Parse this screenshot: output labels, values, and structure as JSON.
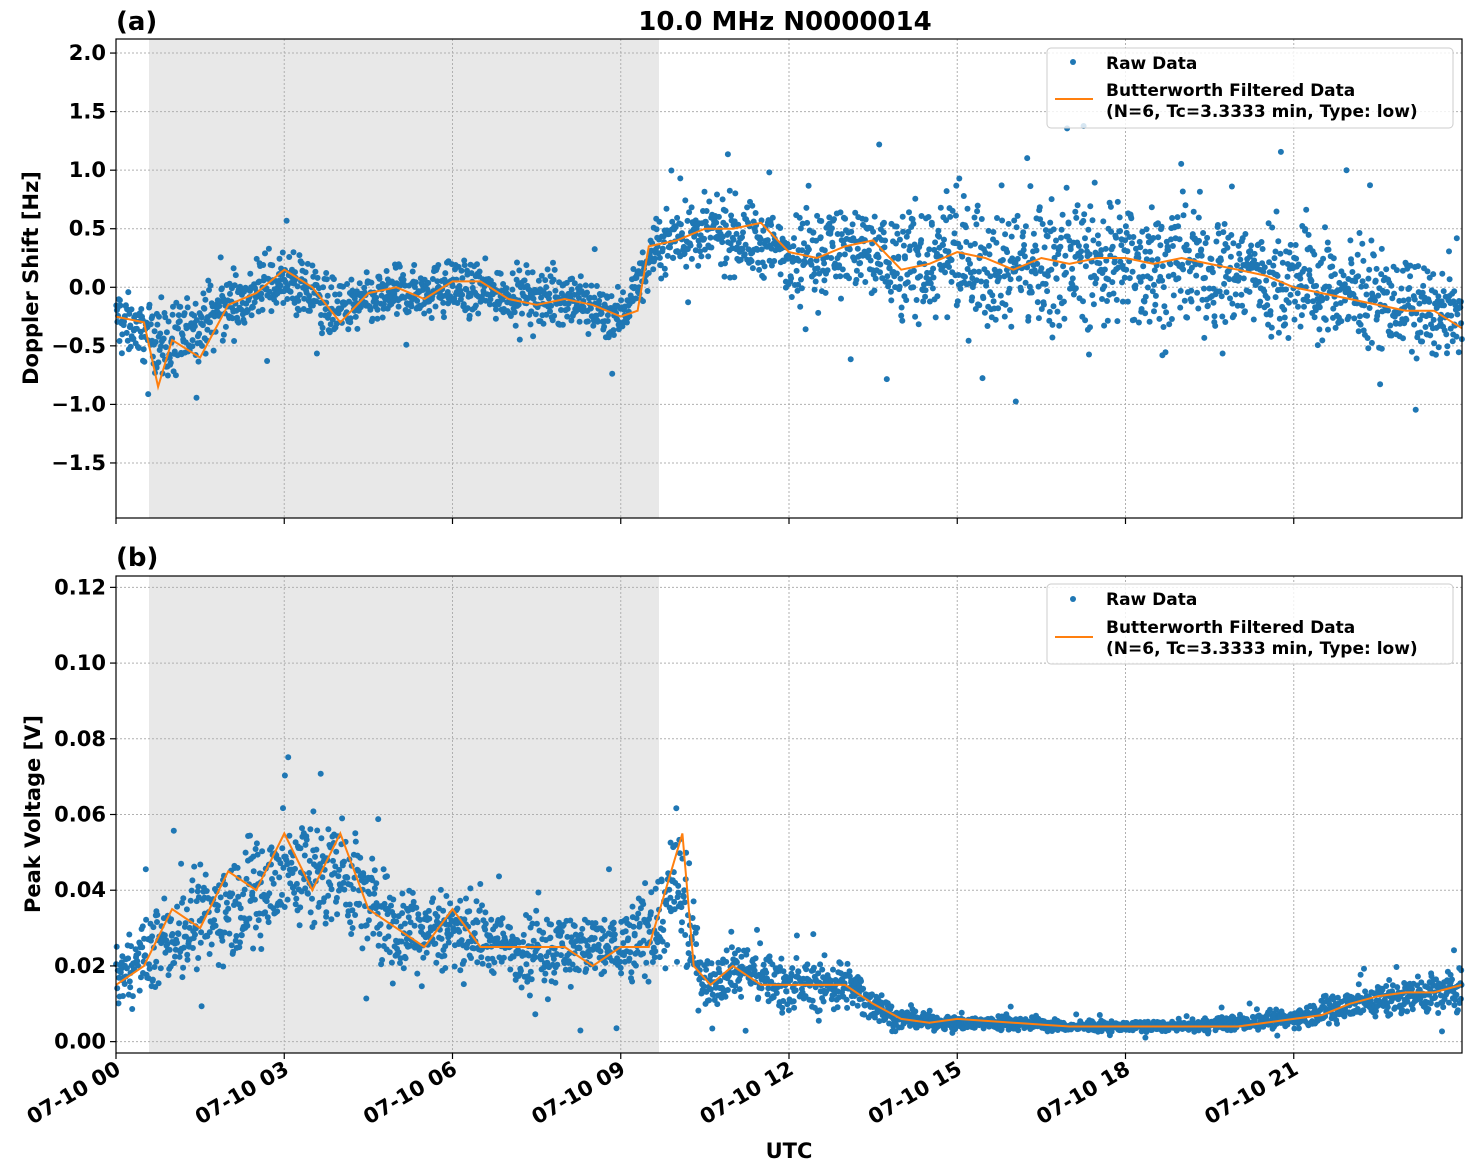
{
  "figure": {
    "title": "10.0 MHz N0000014",
    "xlabel": "UTC",
    "x_ticks": [
      "07-10 00",
      "07-10 03",
      "07-10 06",
      "07-10 09",
      "07-10 12",
      "07-10 15",
      "07-10 18",
      "07-10 21"
    ],
    "legend": {
      "raw_label": "Raw Data",
      "filtered_label_line1": "Butterworth Filtered Data",
      "filtered_label_line2": "(N=6, Tc=3.3333 min, Type: low)"
    },
    "colors": {
      "raw": "#1f77b4",
      "filtered": "#ff7f0e",
      "night_shade": "#e8e8e8"
    }
  },
  "chart_data": [
    {
      "type": "scatter",
      "panel_label": "(a)",
      "ylabel": "Doppler Shift [Hz]",
      "xlim_hours": [
        0,
        24
      ],
      "ylim": [
        -1.97,
        2.12
      ],
      "y_ticks": [
        2.0,
        1.5,
        1.0,
        0.5,
        0.0,
        -0.5,
        -1.0,
        -1.5
      ],
      "y_tick_labels": [
        "2.0",
        "1.5",
        "1.0",
        "0.5",
        "0.0",
        "−0.5",
        "−1.0",
        "−1.5"
      ],
      "shaded_interval_hours": [
        0.57,
        9.63
      ],
      "grid": true,
      "legend_position": "top-right",
      "series": [
        {
          "name": "Butterworth Filtered Data\n(N=6, Tc=3.3333 min, Type: low)",
          "style": "line",
          "x_hours": [
            0,
            0.5,
            0.75,
            1.0,
            1.5,
            2.0,
            2.5,
            3.0,
            3.5,
            4.0,
            4.5,
            5.0,
            5.5,
            6.0,
            6.5,
            7.0,
            7.5,
            8.0,
            8.5,
            9.0,
            9.3,
            9.5,
            10.0,
            10.5,
            11.0,
            11.5,
            12.0,
            12.5,
            13.0,
            13.5,
            14.0,
            14.5,
            15.0,
            15.5,
            16.0,
            16.5,
            17.0,
            17.5,
            18.0,
            18.5,
            19.0,
            19.5,
            20.0,
            20.5,
            21.0,
            21.5,
            22.0,
            22.5,
            23.0,
            23.5,
            24.0
          ],
          "y": [
            -0.25,
            -0.3,
            -0.85,
            -0.45,
            -0.6,
            -0.15,
            -0.05,
            0.15,
            0.0,
            -0.3,
            -0.05,
            0.0,
            -0.1,
            0.05,
            0.05,
            -0.1,
            -0.15,
            -0.1,
            -0.15,
            -0.25,
            -0.2,
            0.35,
            0.4,
            0.5,
            0.5,
            0.55,
            0.3,
            0.25,
            0.35,
            0.4,
            0.15,
            0.2,
            0.3,
            0.25,
            0.15,
            0.25,
            0.2,
            0.25,
            0.25,
            0.2,
            0.25,
            0.2,
            0.15,
            0.1,
            0.0,
            -0.05,
            -0.1,
            -0.15,
            -0.2,
            -0.2,
            -0.35
          ]
        },
        {
          "name": "Raw Data",
          "style": "points",
          "x_hours": [
            0,
            1,
            2,
            3,
            4,
            5,
            6,
            7,
            8,
            9,
            9.6,
            10,
            11,
            12,
            13,
            14,
            15,
            16,
            17,
            18,
            19,
            20,
            21,
            22,
            23,
            24
          ],
          "y_center": [
            -0.25,
            -0.5,
            -0.15,
            0.05,
            -0.2,
            -0.05,
            0.0,
            -0.05,
            -0.1,
            -0.25,
            0.3,
            0.45,
            0.45,
            0.3,
            0.35,
            0.2,
            0.25,
            0.2,
            0.25,
            0.2,
            0.2,
            0.15,
            0.05,
            -0.05,
            -0.15,
            -0.3
          ],
          "y_spread": [
            0.35,
            0.45,
            0.4,
            0.4,
            0.4,
            0.35,
            0.35,
            0.35,
            0.35,
            0.35,
            0.35,
            0.45,
            0.5,
            0.5,
            0.6,
            0.75,
            0.8,
            0.85,
            0.85,
            0.85,
            0.85,
            0.8,
            0.75,
            0.65,
            0.6,
            0.55
          ]
        }
      ]
    },
    {
      "type": "scatter",
      "panel_label": "(b)",
      "ylabel": "Peak Voltage [V]",
      "xlim_hours": [
        0,
        24
      ],
      "ylim": [
        -0.003,
        0.123
      ],
      "y_ticks": [
        0.12,
        0.1,
        0.08,
        0.06,
        0.04,
        0.02,
        0.0
      ],
      "y_tick_labels": [
        "0.12",
        "0.10",
        "0.08",
        "0.06",
        "0.04",
        "0.02",
        "0.00"
      ],
      "shaded_interval_hours": [
        0.57,
        9.63
      ],
      "grid": true,
      "legend_position": "top-right",
      "series": [
        {
          "name": "Butterworth Filtered Data\n(N=6, Tc=3.3333 min, Type: low)",
          "style": "line",
          "x_hours": [
            0,
            0.5,
            1.0,
            1.5,
            2.0,
            2.5,
            3.0,
            3.5,
            4.0,
            4.5,
            5.0,
            5.5,
            6.0,
            6.5,
            7.0,
            7.5,
            8.0,
            8.5,
            9.0,
            9.5,
            9.8,
            10.1,
            10.3,
            10.6,
            11.0,
            11.5,
            12.0,
            12.5,
            13.0,
            13.5,
            14.0,
            14.5,
            15.0,
            16.0,
            17.0,
            18.0,
            19.0,
            20.0,
            20.5,
            21.0,
            21.5,
            22.0,
            22.5,
            23.0,
            23.5,
            24.0
          ],
          "y": [
            0.015,
            0.02,
            0.035,
            0.03,
            0.045,
            0.04,
            0.055,
            0.04,
            0.055,
            0.035,
            0.03,
            0.025,
            0.035,
            0.025,
            0.025,
            0.025,
            0.025,
            0.02,
            0.025,
            0.025,
            0.04,
            0.055,
            0.02,
            0.015,
            0.02,
            0.015,
            0.015,
            0.015,
            0.015,
            0.01,
            0.006,
            0.005,
            0.006,
            0.005,
            0.004,
            0.004,
            0.004,
            0.004,
            0.005,
            0.006,
            0.007,
            0.01,
            0.012,
            0.013,
            0.013,
            0.015
          ]
        },
        {
          "name": "Raw Data",
          "style": "points",
          "x_hours": [
            0,
            1,
            2,
            3,
            4,
            5,
            6,
            7,
            8,
            9,
            9.6,
            10,
            10.5,
            11,
            12,
            13,
            13.5,
            14,
            15,
            16,
            17,
            18,
            19,
            20,
            21,
            22,
            23,
            24
          ],
          "y_center": [
            0.017,
            0.028,
            0.035,
            0.045,
            0.045,
            0.03,
            0.03,
            0.025,
            0.025,
            0.025,
            0.03,
            0.04,
            0.015,
            0.02,
            0.015,
            0.015,
            0.01,
            0.006,
            0.005,
            0.005,
            0.004,
            0.004,
            0.004,
            0.005,
            0.006,
            0.01,
            0.012,
            0.014
          ],
          "y_spread": [
            0.01,
            0.018,
            0.022,
            0.025,
            0.025,
            0.018,
            0.015,
            0.014,
            0.014,
            0.015,
            0.02,
            0.03,
            0.01,
            0.012,
            0.01,
            0.01,
            0.007,
            0.004,
            0.003,
            0.003,
            0.002,
            0.002,
            0.002,
            0.003,
            0.004,
            0.007,
            0.008,
            0.009
          ]
        }
      ]
    }
  ]
}
